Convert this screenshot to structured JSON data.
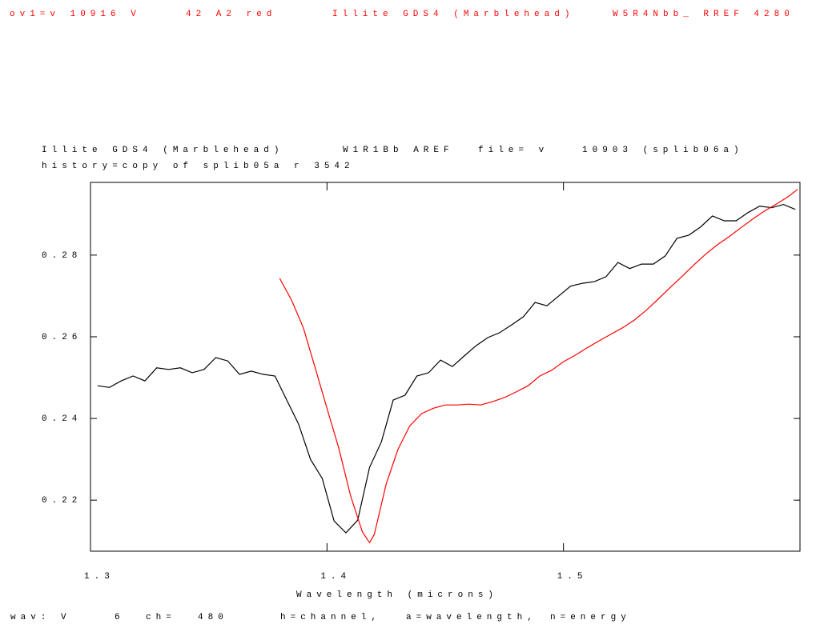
{
  "header": [
    "ov1=v 10916 V",
    "42 A2 red",
    "Illite GDS4 (Marblehead)",
    "W5R4Nbb_ RREF 4280"
  ],
  "footer": [
    "wav: V",
    "6",
    "ch=",
    "480",
    "h=channel,",
    "a=wavelength,",
    "n=energy"
  ],
  "chart_data": {
    "type": "line",
    "title": [
      "Illite GDS4 (Marblehead)",
      "W1R1Bb AREF",
      "file= v",
      "10903 (splib06a)"
    ],
    "subtitle": "history=copy of splib05a r 3542",
    "x_label": "Wavelength (microns)",
    "xlim": [
      1.3,
      1.6
    ],
    "xticks": [
      1.3,
      1.4,
      1.5
    ],
    "ylim": [
      0.2075,
      0.2978
    ],
    "yticks": [
      0.22,
      0.24,
      0.26,
      0.28
    ],
    "series": [
      {
        "color": "#000000",
        "x": [
          1.303,
          1.308,
          1.313,
          1.318,
          1.323,
          1.328,
          1.333,
          1.338,
          1.343,
          1.348,
          1.353,
          1.358,
          1.363,
          1.368,
          1.373,
          1.378,
          1.383,
          1.388,
          1.393,
          1.398,
          1.403,
          1.408,
          1.413,
          1.418,
          1.423,
          1.428,
          1.433,
          1.438,
          1.443,
          1.448,
          1.453,
          1.458,
          1.463,
          1.468,
          1.473,
          1.478,
          1.483,
          1.488,
          1.493,
          1.498,
          1.503,
          1.508,
          1.513,
          1.518,
          1.523,
          1.528,
          1.533,
          1.538,
          1.543,
          1.548,
          1.553,
          1.558,
          1.563,
          1.568,
          1.573,
          1.578,
          1.583,
          1.588,
          1.593,
          1.598
        ],
        "values": [
          0.248,
          0.2476,
          0.2492,
          0.2504,
          0.2492,
          0.2524,
          0.252,
          0.2524,
          0.2512,
          0.252,
          0.2549,
          0.2541,
          0.2508,
          0.2516,
          0.2508,
          0.2504,
          0.2445,
          0.2386,
          0.23,
          0.2253,
          0.2149,
          0.212,
          0.2151,
          0.228,
          0.2343,
          0.2445,
          0.2457,
          0.2504,
          0.2512,
          0.2543,
          0.2527,
          0.2553,
          0.2578,
          0.2598,
          0.261,
          0.2629,
          0.2649,
          0.2684,
          0.2676,
          0.27,
          0.2724,
          0.2731,
          0.2735,
          0.2747,
          0.2782,
          0.2767,
          0.2778,
          0.2778,
          0.2798,
          0.2841,
          0.2849,
          0.2869,
          0.2896,
          0.2884,
          0.2884,
          0.2904,
          0.292,
          0.2916,
          0.2924,
          0.2912
        ]
      },
      {
        "color": "#ff0000",
        "x": [
          1.38,
          1.385,
          1.39,
          1.395,
          1.4,
          1.405,
          1.41,
          1.415,
          1.418,
          1.42,
          1.425,
          1.43,
          1.435,
          1.44,
          1.445,
          1.45,
          1.455,
          1.46,
          1.465,
          1.47,
          1.475,
          1.48,
          1.485,
          1.49,
          1.495,
          1.5,
          1.505,
          1.51,
          1.515,
          1.52,
          1.525,
          1.53,
          1.535,
          1.54,
          1.545,
          1.55,
          1.555,
          1.56,
          1.565,
          1.57,
          1.575,
          1.58,
          1.585,
          1.59,
          1.595,
          1.599
        ],
        "values": [
          0.2743,
          0.269,
          0.2622,
          0.2524,
          0.2425,
          0.2327,
          0.221,
          0.2122,
          0.2096,
          0.2116,
          0.2239,
          0.2324,
          0.2382,
          0.2412,
          0.2425,
          0.2433,
          0.2433,
          0.2435,
          0.2433,
          0.2441,
          0.2451,
          0.2465,
          0.248,
          0.2504,
          0.2518,
          0.2539,
          0.2555,
          0.2573,
          0.259,
          0.2606,
          0.2622,
          0.2641,
          0.2665,
          0.2692,
          0.272,
          0.2747,
          0.2775,
          0.2802,
          0.2825,
          0.2845,
          0.2867,
          0.2888,
          0.2908,
          0.2925,
          0.2943,
          0.2961
        ]
      }
    ]
  }
}
